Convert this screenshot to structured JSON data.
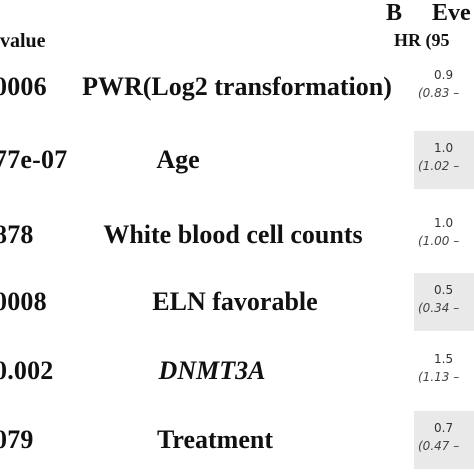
{
  "panel_label": "B",
  "panel_title": "Eve",
  "pvalue_header": "value",
  "hr_header": "HR (95",
  "rows": [
    {
      "pvalue": "0006",
      "variable": "PWR(Log2 transformation)",
      "italic": false,
      "hr": "0.9",
      "ci": "(0.83 –",
      "shaded": false
    },
    {
      "pvalue": "77e-07",
      "variable": "Age",
      "italic": false,
      "hr": "1.0",
      "ci": "(1.02 –",
      "shaded": true
    },
    {
      "pvalue": "878",
      "variable": "White blood cell counts",
      "italic": false,
      "hr": "1.0",
      "ci": "(1.00 –",
      "shaded": false
    },
    {
      "pvalue": "0008",
      "variable": "ELN favorable",
      "italic": false,
      "hr": "0.5",
      "ci": "(0.34 –",
      "shaded": true
    },
    {
      "pvalue": "0.002",
      "variable": "DNMT3A",
      "italic": true,
      "hr": "1.5",
      "ci": "(1.13 –",
      "shaded": false
    },
    {
      "pvalue": "079",
      "variable": "Treatment",
      "italic": false,
      "hr": "0.7",
      "ci": "(0.47 –",
      "shaded": true
    }
  ]
}
